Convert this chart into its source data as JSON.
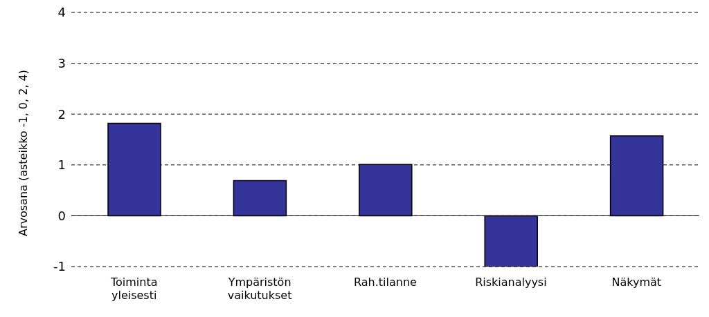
{
  "chart_data": {
    "type": "bar",
    "ylabel": "Arvosana (asteikko -1, 0, 2, 4)",
    "categories": [
      "Toiminta yleisesti",
      "Ympäristön vaikutukset",
      "Rah.tilanne",
      "Riskianalyysi",
      "Näkymät"
    ],
    "values": [
      1.82,
      0.69,
      1.01,
      -1,
      1.57
    ],
    "color": "#333399",
    "ylim": [
      -1,
      4
    ],
    "yticks": [
      -1,
      0,
      1,
      2,
      3,
      4
    ],
    "grid": "y"
  }
}
